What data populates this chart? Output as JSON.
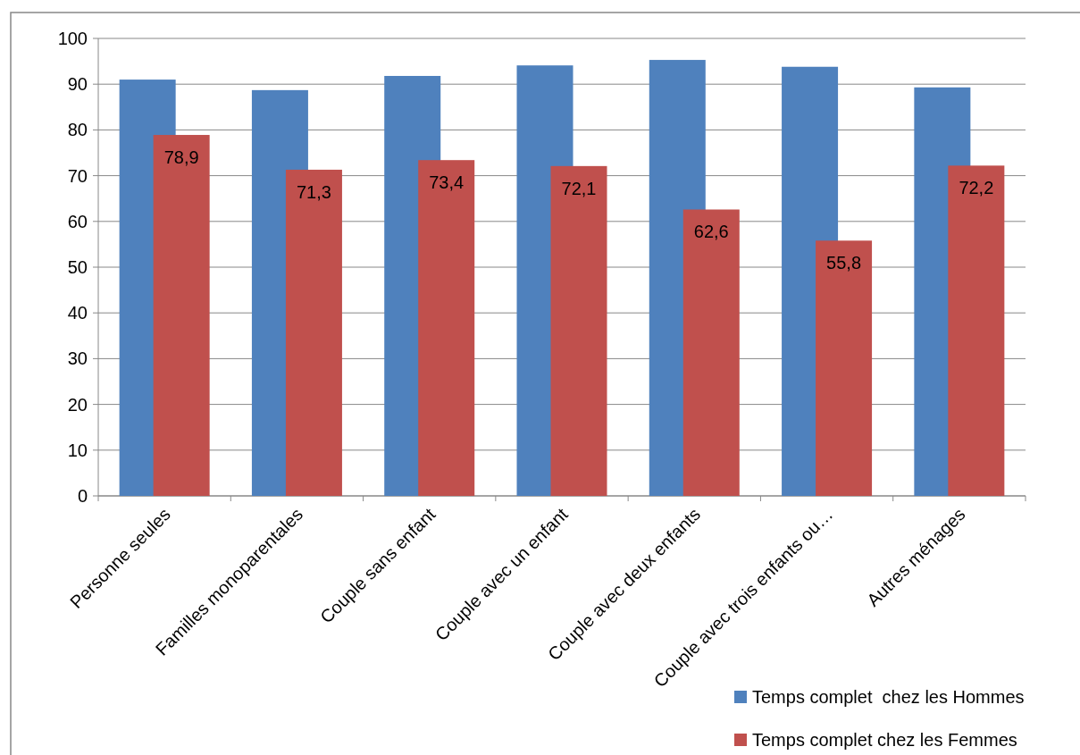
{
  "chart_data": {
    "type": "bar",
    "categories": [
      "Personne seules",
      "Familles monoparentales",
      "Couple sans enfant",
      "Couple avec un enfant",
      "Couple avec deux enfants",
      "Couple avec trois enfants ou…",
      "Autres ménages"
    ],
    "series": [
      {
        "name": "Temps complet  chez les Hommes",
        "color": "#4f81bd",
        "values": [
          91.0,
          88.7,
          91.8,
          94.1,
          95.3,
          93.8,
          89.3
        ]
      },
      {
        "name": "Temps complet chez les Femmes",
        "color": "#c0504d",
        "values": [
          78.9,
          71.3,
          73.4,
          72.1,
          62.6,
          55.8,
          72.2
        ],
        "value_labels": [
          "78,9",
          "71,3",
          "73,4",
          "72,1",
          "62,6",
          "55,8",
          "72,2"
        ]
      }
    ],
    "ylim": [
      0,
      100
    ],
    "yticks": [
      0,
      10,
      20,
      30,
      40,
      50,
      60,
      70,
      80,
      90,
      100
    ],
    "grid": "y",
    "legend": "bottom right"
  }
}
